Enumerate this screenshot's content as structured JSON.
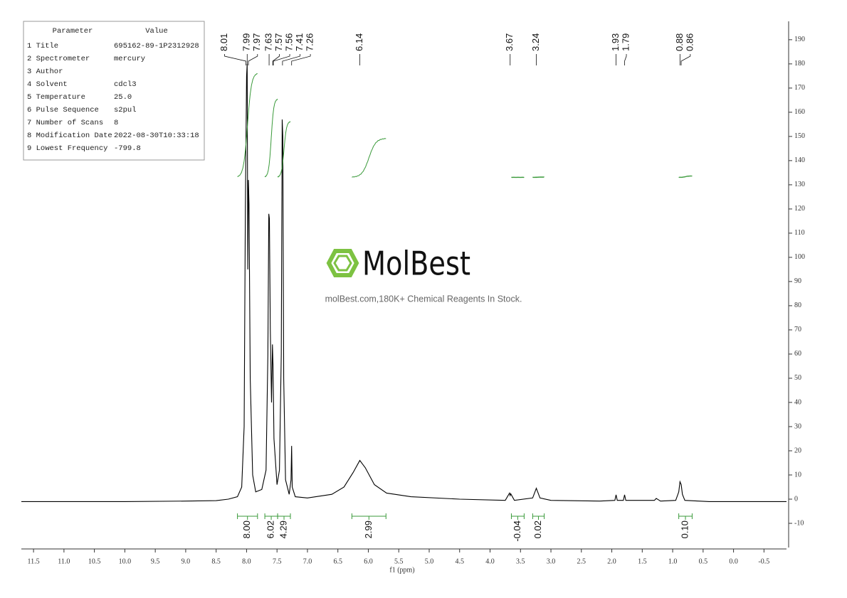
{
  "parameters": {
    "header": [
      "Parameter",
      "Value"
    ],
    "rows": [
      [
        "1 Title",
        "695162-89-1P2312928"
      ],
      [
        "2 Spectrometer",
        "mercury"
      ],
      [
        "3 Author",
        ""
      ],
      [
        "4 Solvent",
        "cdcl3"
      ],
      [
        "5 Temperature",
        "25.0"
      ],
      [
        "6 Pulse Sequence",
        "s2pul"
      ],
      [
        "7 Number of Scans",
        "8"
      ],
      [
        "8 Modification Date",
        "2022-08-30T10:33:18"
      ],
      [
        "9 Lowest Frequency",
        "-799.8"
      ]
    ]
  },
  "watermark": {
    "brand": "MolBest",
    "tagline": "molBest.com,180K+ Chemical Reagents In Stock."
  },
  "chart_data": {
    "type": "line",
    "x_label": "f1 (ppm)",
    "color": "#000000",
    "xlim": [
      11.7,
      -0.87
    ],
    "xticks": [
      11.5,
      {
        "value": 11,
        "label": "11.0"
      },
      10.5,
      {
        "value": 10,
        "label": "10.0"
      },
      9.5,
      {
        "value": 9,
        "label": "9.0"
      },
      8.5,
      {
        "value": 8,
        "label": "8.0"
      },
      7.5,
      {
        "value": 7,
        "label": "7.0"
      },
      6.5,
      {
        "value": 6,
        "label": "6.0"
      },
      5.5,
      {
        "value": 5,
        "label": "5.0"
      },
      4.5,
      {
        "value": 4,
        "label": "4.0"
      },
      3.5,
      {
        "value": 3,
        "label": "3.0"
      },
      2.5,
      {
        "value": 2,
        "label": "2.0"
      },
      1.5,
      {
        "value": 1,
        "label": "1.0"
      },
      0.5,
      {
        "value": 0,
        "label": "0.0"
      },
      -0.5
    ],
    "ylim": [
      -20,
      197.6
    ],
    "yticks": [
      -10,
      0,
      10,
      20,
      30,
      40,
      50,
      60,
      70,
      80,
      90,
      100,
      110,
      120,
      130,
      140,
      150,
      160,
      170,
      180,
      190
    ],
    "x": [
      11.7,
      10,
      9,
      8.5,
      8.3,
      8.15,
      8.08,
      8.04,
      8.02,
      8.0,
      7.99,
      7.98,
      7.97,
      7.96,
      7.94,
      7.9,
      7.85,
      7.75,
      7.68,
      7.65,
      7.635,
      7.625,
      7.61,
      7.59,
      7.575,
      7.565,
      7.55,
      7.5,
      7.46,
      7.43,
      7.415,
      7.405,
      7.39,
      7.36,
      7.3,
      7.27,
      7.26,
      7.25,
      7.2,
      7.0,
      6.6,
      6.4,
      6.25,
      6.14,
      6.05,
      5.9,
      5.7,
      5.3,
      4.5,
      3.75,
      3.68,
      3.67,
      3.66,
      3.6,
      3.3,
      3.24,
      3.18,
      3.0,
      2.2,
      1.95,
      1.93,
      1.91,
      1.81,
      1.79,
      1.77,
      1.3,
      1.27,
      1.2,
      0.95,
      0.9,
      0.88,
      0.86,
      0.84,
      0.8,
      0.4,
      -0.87
    ],
    "values": [
      -1,
      -1,
      -0.8,
      -0.6,
      0,
      1,
      5,
      30,
      120,
      175,
      180,
      95,
      132,
      122,
      50,
      10,
      3,
      4,
      12,
      60,
      118,
      116,
      70,
      40,
      64,
      55,
      25,
      6,
      12,
      60,
      157,
      150,
      50,
      8,
      2,
      8,
      22,
      5,
      1,
      0.5,
      2,
      5,
      11,
      16,
      13,
      6,
      2.5,
      1,
      0,
      -0.5,
      2.5,
      1.5,
      2.2,
      -0.5,
      0.5,
      4.5,
      0.5,
      -0.5,
      -0.8,
      -0.5,
      1.8,
      -0.5,
      -0.5,
      1.8,
      -0.5,
      -0.5,
      0.3,
      -0.8,
      -0.5,
      3,
      7.2,
      6,
      2,
      -0.5,
      -1,
      -1
    ],
    "peaks": [
      8.01,
      7.99,
      7.97,
      7.63,
      7.57,
      7.56,
      7.41,
      7.26,
      6.14,
      3.67,
      3.24,
      1.93,
      1.79,
      0.88,
      0.86
    ],
    "integrals": {
      "color": "#3a9a3a",
      "ranges": [
        [
          8.15,
          7.82
        ],
        [
          7.7,
          7.49
        ],
        [
          7.49,
          7.28
        ],
        [
          6.27,
          5.71
        ],
        [
          3.65,
          3.44
        ],
        [
          3.3,
          3.11
        ],
        [
          0.9,
          0.68
        ]
      ],
      "values": [
        8,
        6.02,
        4.29,
        2.99,
        -0.04,
        0.02,
        0.1
      ],
      "value_labels": [
        "8.00",
        "6.02",
        "4.29",
        "2.99",
        "-0.04",
        "0.02",
        "0.10"
      ]
    }
  }
}
